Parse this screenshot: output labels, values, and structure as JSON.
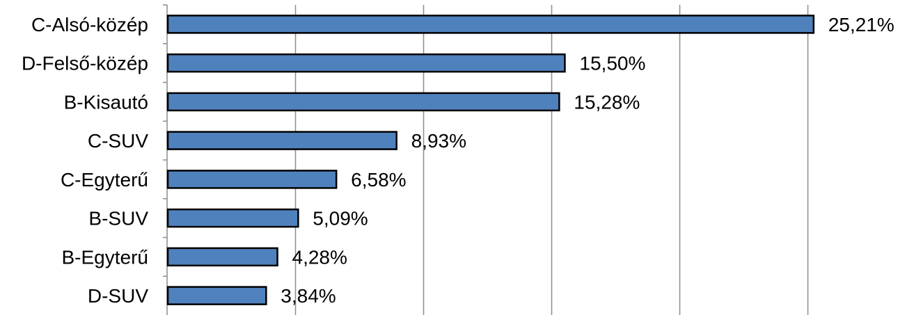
{
  "chart_data": {
    "type": "bar",
    "orientation": "horizontal",
    "categories": [
      "C-Alsó-közép",
      "D-Felső-közép",
      "B-Kisautó",
      "C-SUV",
      "C-Egyterű",
      "B-SUV",
      "B-Egyterű",
      "D-SUV"
    ],
    "values": [
      25.21,
      15.5,
      15.28,
      8.93,
      6.58,
      5.09,
      4.28,
      3.84
    ],
    "value_labels": [
      "25,21%",
      "15,50%",
      "15,28%",
      "8,93%",
      "6,58%",
      "5,09%",
      "4,28%",
      "3,84%"
    ],
    "xlim": [
      0,
      30
    ],
    "grid": true,
    "bar_color": "#4f81bd",
    "bar_edge_color": "#000000"
  }
}
